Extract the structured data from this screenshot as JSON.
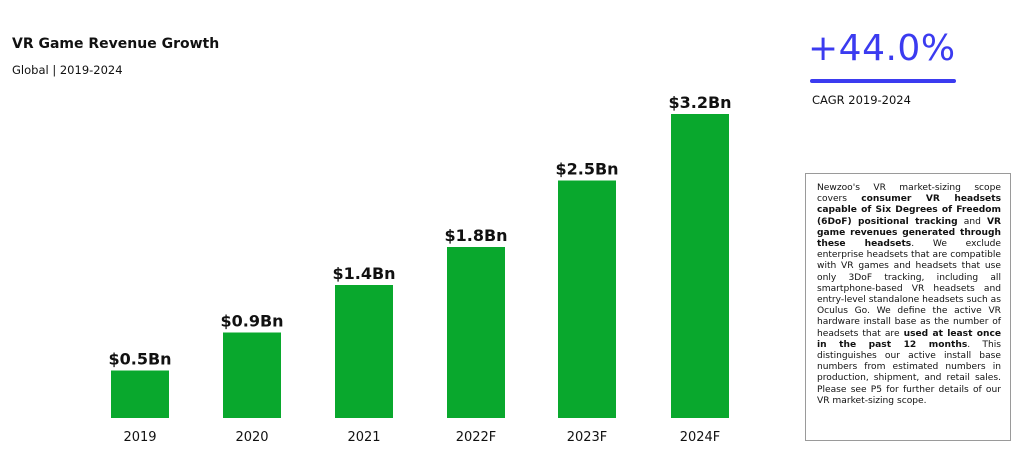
{
  "header": {
    "title": "VR Game Revenue Growth",
    "subtitle": "Global | 2019-2024"
  },
  "cagr": {
    "value": "+44.0%",
    "label": "CAGR 2019-2024",
    "color": "#3b3bf0"
  },
  "note": {
    "segments": [
      {
        "text": "Newzoo's VR market-sizing scope covers ",
        "bold": false
      },
      {
        "text": "consumer VR headsets capable of Six Degrees of Freedom (6DoF) positional tracking",
        "bold": true
      },
      {
        "text": " and ",
        "bold": false
      },
      {
        "text": "VR game revenues generated through these headsets",
        "bold": true
      },
      {
        "text": ". We exclude enterprise headsets that are compatible with VR games and headsets that use only 3DoF tracking, including all smartphone-based VR headsets and entry-level standalone headsets such as Oculus Go. We define the active VR hardware install base as the number of headsets that are ",
        "bold": false
      },
      {
        "text": "used at least once in the past 12 months",
        "bold": true
      },
      {
        "text": ". This distinguishes our active install base numbers from estimated numbers in production, shipment, and retail sales. Please see P5 for further details of our VR market-sizing scope.",
        "bold": false
      }
    ]
  },
  "chart_data": {
    "type": "bar",
    "title": "VR Game Revenue Growth",
    "subtitle": "Global | 2019-2024",
    "categories": [
      "2019",
      "2020",
      "2021",
      "2022F",
      "2023F",
      "2024F"
    ],
    "values": [
      0.5,
      0.9,
      1.4,
      1.8,
      2.5,
      3.2
    ],
    "data_labels": [
      "$0.5Bn",
      "$0.9Bn",
      "$1.4Bn",
      "$1.8Bn",
      "$2.5Bn",
      "$3.2Bn"
    ],
    "unit": "Bn USD",
    "ylim": [
      0,
      3.2
    ],
    "grid": false,
    "bar_color": "#09a82d"
  }
}
